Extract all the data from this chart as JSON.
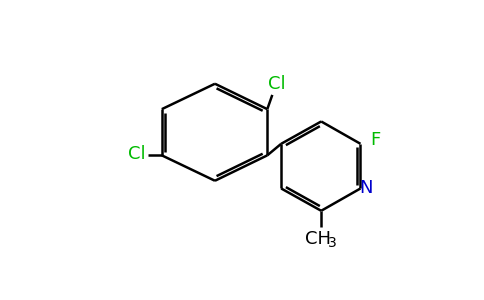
{
  "bg_color": "#ffffff",
  "bond_color": "#000000",
  "cl_color": "#00bb00",
  "f_color": "#00bb00",
  "n_color": "#0000cc",
  "line_width": 1.8,
  "font_size": 13,
  "subscript_font_size": 10,
  "figsize": [
    4.84,
    3.0
  ],
  "dpi": 100,
  "xlim": [
    0,
    9.68
  ],
  "ylim": [
    0,
    6.0
  ]
}
